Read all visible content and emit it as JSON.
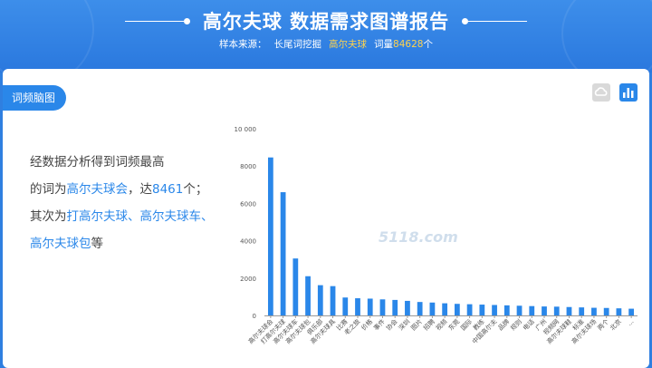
{
  "header": {
    "title": "高尔夫球 数据需求图谱报告",
    "source_label": "样本来源：",
    "source_name": "长尾词挖掘",
    "keyword": "高尔夫球",
    "count_label": "词量",
    "count_value": "84628",
    "count_unit": "个"
  },
  "section": {
    "tag": "词频脑图",
    "icons": [
      "cloud-icon",
      "bar-chart-icon"
    ]
  },
  "summary": {
    "line1": "经数据分析得到词频最高",
    "line2_prefix": "的词为",
    "top_word": "高尔夫球会",
    "line2_mid": "，达",
    "top_count": "8461",
    "line2_suffix": "个；",
    "line3_prefix": "其次为",
    "second_words": "打高尔夫球、高尔夫球车、",
    "line4_word": "高尔夫球包",
    "line4_suffix": "等"
  },
  "watermark": "5118.com",
  "colors": {
    "accent": "#2a87e9",
    "bar": "#2a87e9",
    "highlight": "#ffd34d"
  },
  "chart_data": {
    "type": "bar",
    "ylim": [
      0,
      10000
    ],
    "yticks": [
      "0",
      "2000",
      "4000",
      "6000",
      "8000",
      "10 000"
    ],
    "categories": [
      "高尔夫球会",
      "打高尔夫球",
      "高尔夫球车",
      "高尔夫球包",
      "俱乐部",
      "高尔夫球具",
      "比赛",
      "老之旅",
      "价格",
      "事件",
      "协会",
      "深圳",
      "图片",
      "招聘",
      "视频",
      "东莞",
      "国际",
      "教练",
      "中国高尔夫",
      "品牌",
      "规则",
      "电话",
      "广州",
      "视频网",
      "高尔夫球鞋",
      "标准",
      "高尔夫球场",
      "两个",
      "北京",
      "..."
    ],
    "values": [
      8461,
      6600,
      3050,
      2100,
      1620,
      1570,
      960,
      920,
      900,
      860,
      830,
      780,
      720,
      690,
      650,
      620,
      600,
      580,
      560,
      540,
      520,
      500,
      480,
      470,
      450,
      430,
      410,
      400,
      380,
      360
    ],
    "xlabel": "",
    "ylabel": "",
    "grid": false
  }
}
